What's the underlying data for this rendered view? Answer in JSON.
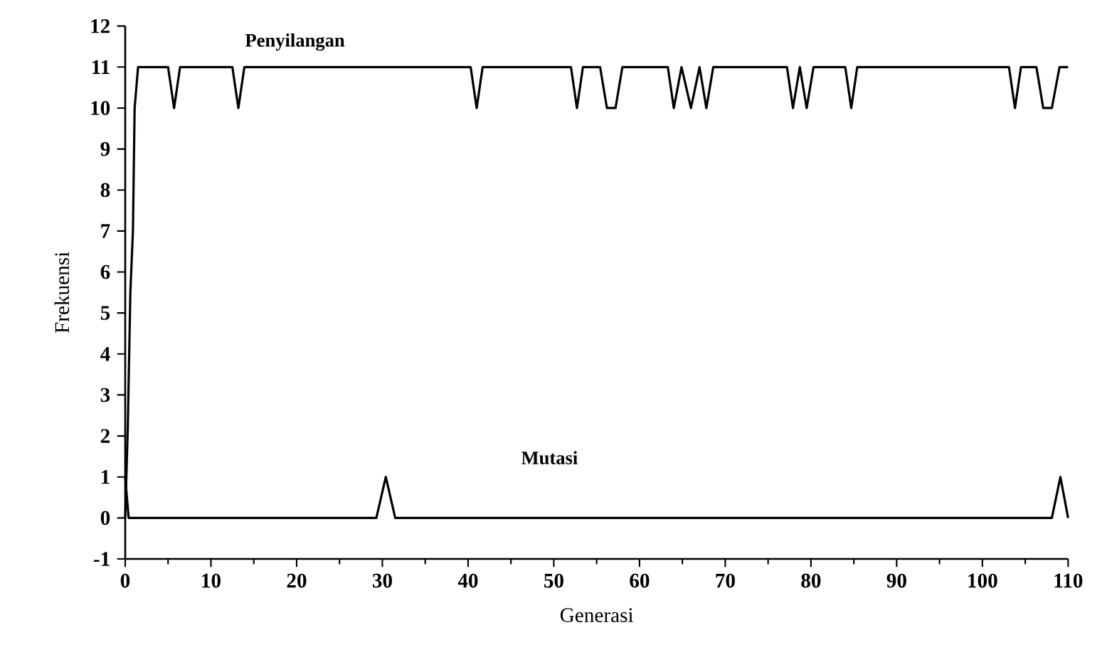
{
  "chart_data": {
    "type": "line",
    "xlabel": "Generasi",
    "ylabel": "Frekuensi",
    "series": [
      {
        "name": "Penyilangan",
        "color": "#000000",
        "x": [
          0,
          0.3,
          0.6,
          0.9,
          1.1,
          1.5,
          5,
          5.7,
          6.4,
          12.5,
          13.2,
          13.9,
          40.3,
          41,
          41.7,
          52,
          52.7,
          53.4,
          55.4,
          56.2,
          57.2,
          58,
          63.3,
          64,
          64.9,
          66,
          67,
          67.8,
          68.6,
          77.2,
          77.9,
          78.7,
          79.5,
          80.3,
          84,
          84.7,
          85.4,
          103.1,
          103.8,
          104.5,
          106.3,
          107.1,
          108.1,
          109,
          110
        ],
        "values": [
          0,
          2.2,
          5.5,
          7,
          10,
          11,
          11,
          10,
          11,
          11,
          10,
          11,
          11,
          10,
          11,
          11,
          10,
          11,
          11,
          10,
          10,
          11,
          11,
          10,
          11,
          10,
          11,
          10,
          11,
          11,
          10,
          11,
          10,
          11,
          11,
          10,
          11,
          11,
          10,
          11,
          11,
          10,
          10,
          11,
          11
        ]
      },
      {
        "name": "Mutasi",
        "color": "#000000",
        "x": [
          0,
          0.4,
          29.3,
          30.4,
          31.5,
          108.1,
          109.1,
          110
        ],
        "values": [
          1,
          0,
          0,
          1,
          0,
          0,
          1,
          0
        ]
      }
    ],
    "xlim": [
      0,
      110
    ],
    "ylim": [
      -1,
      12
    ],
    "xticks": [
      0,
      10,
      20,
      30,
      40,
      50,
      60,
      70,
      80,
      90,
      100,
      110
    ],
    "yticks": [
      -1,
      0,
      1,
      2,
      3,
      4,
      5,
      6,
      7,
      8,
      9,
      10,
      11,
      12
    ],
    "grid": false,
    "legend": false,
    "marker": "none",
    "line_style": "solid"
  }
}
